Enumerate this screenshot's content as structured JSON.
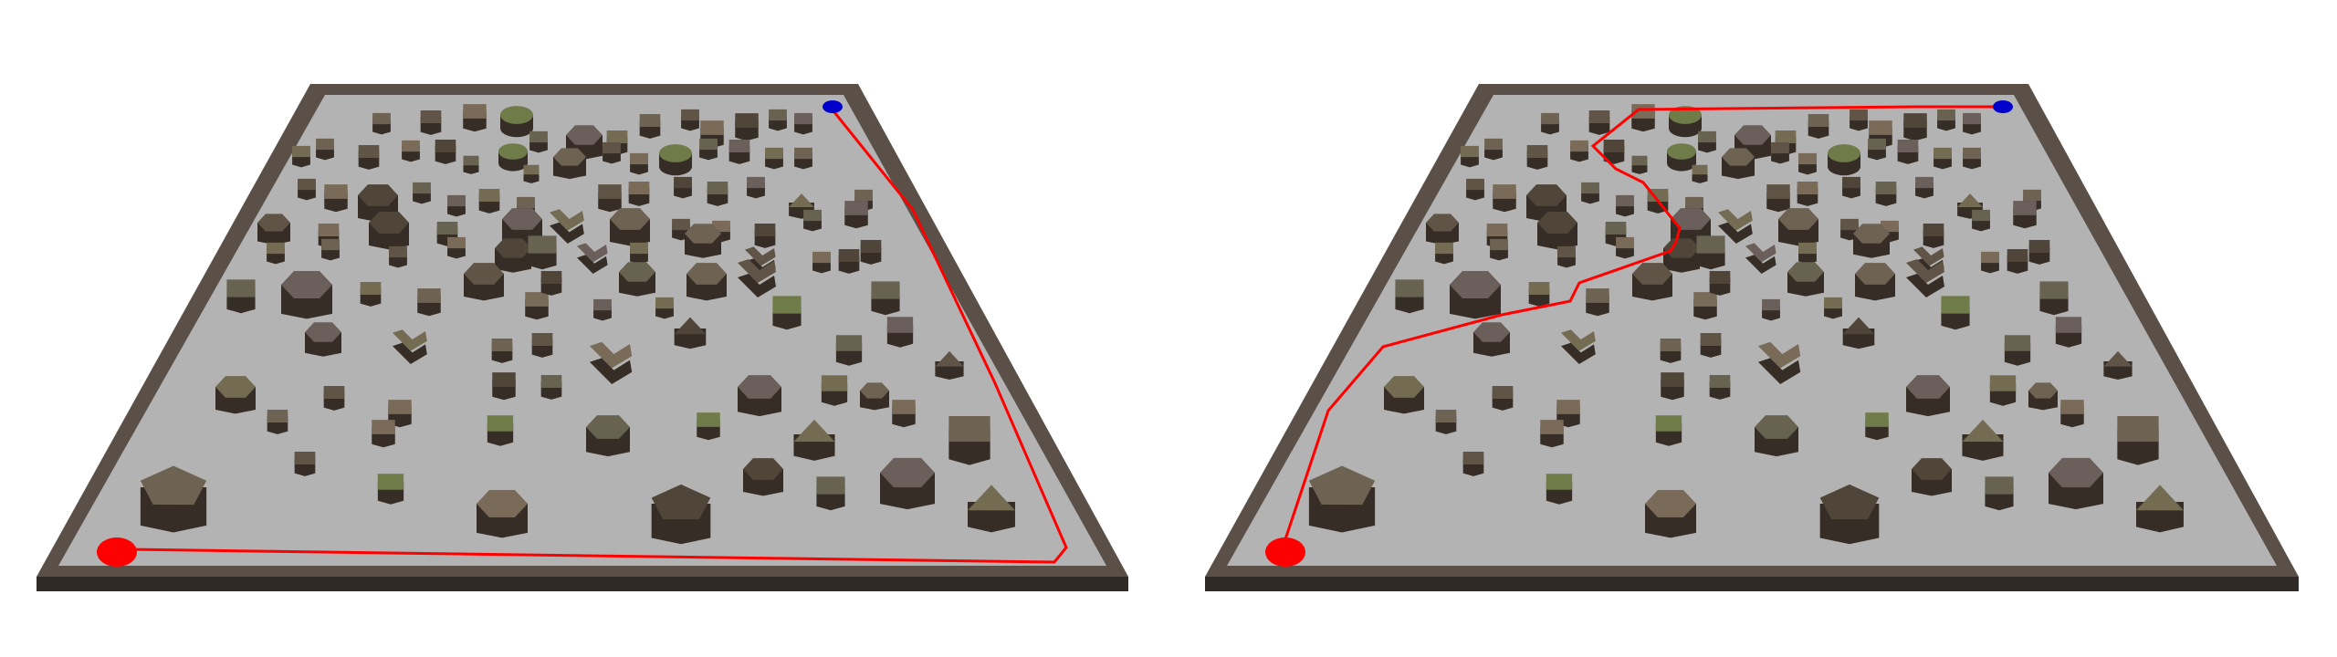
{
  "colors": {
    "background": "#ffffff",
    "floor": "#b3b3b3",
    "wall_top": "#5a5048",
    "wall_side": "#2f2a25",
    "obstacle_top_palette": [
      "#6e6252",
      "#5f5445",
      "#7a6a58",
      "#4f4539",
      "#686250",
      "#6b5f5c",
      "#736c52"
    ],
    "obstacle_side": "#352d26",
    "olive": "#6f7b48",
    "path": "#ff0000",
    "start_marker": "#ff0000",
    "goal_marker": "#0000cc"
  },
  "panels": [
    {
      "id": "left",
      "path_route": "border"
    },
    {
      "id": "right",
      "path_route": "through-obstacles"
    }
  ]
}
